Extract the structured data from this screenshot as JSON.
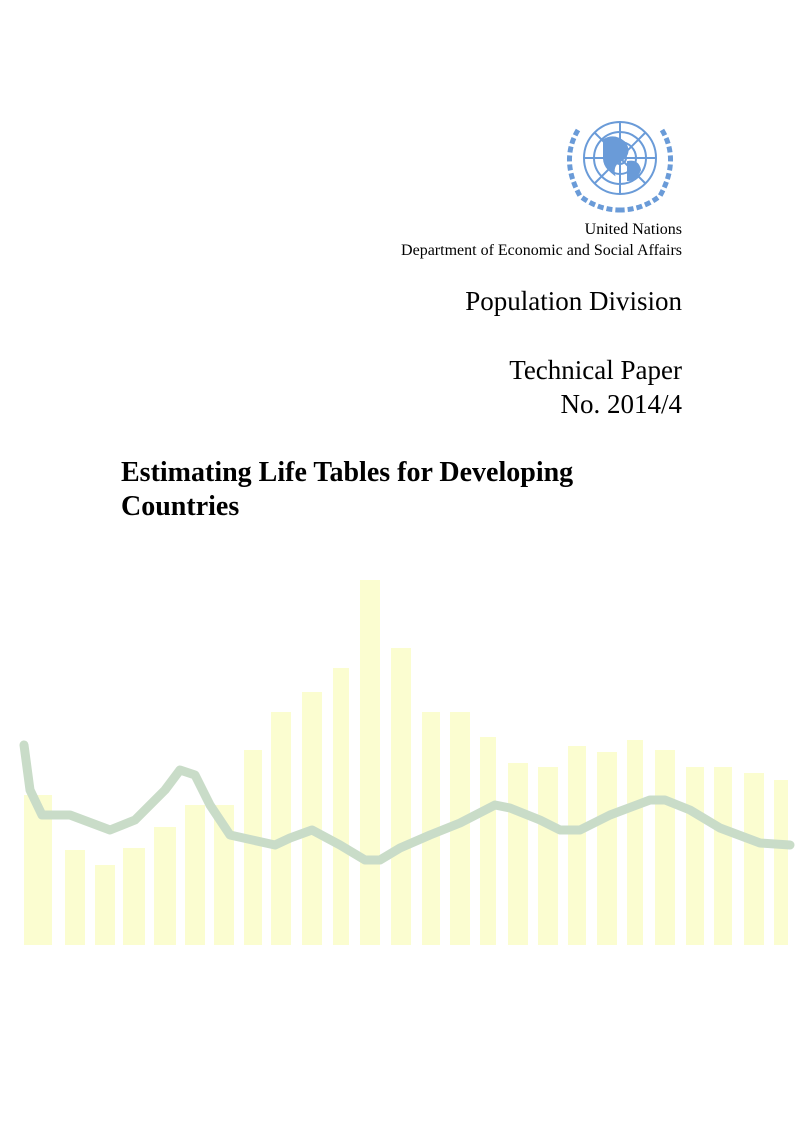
{
  "header": {
    "organization": "United Nations",
    "department": "Department of Economic and Social Affairs",
    "division": "Population Division",
    "series": "Technical Paper",
    "number": "No. 2014/4"
  },
  "title": "Estimating Life Tables for Developing Countries"
}
